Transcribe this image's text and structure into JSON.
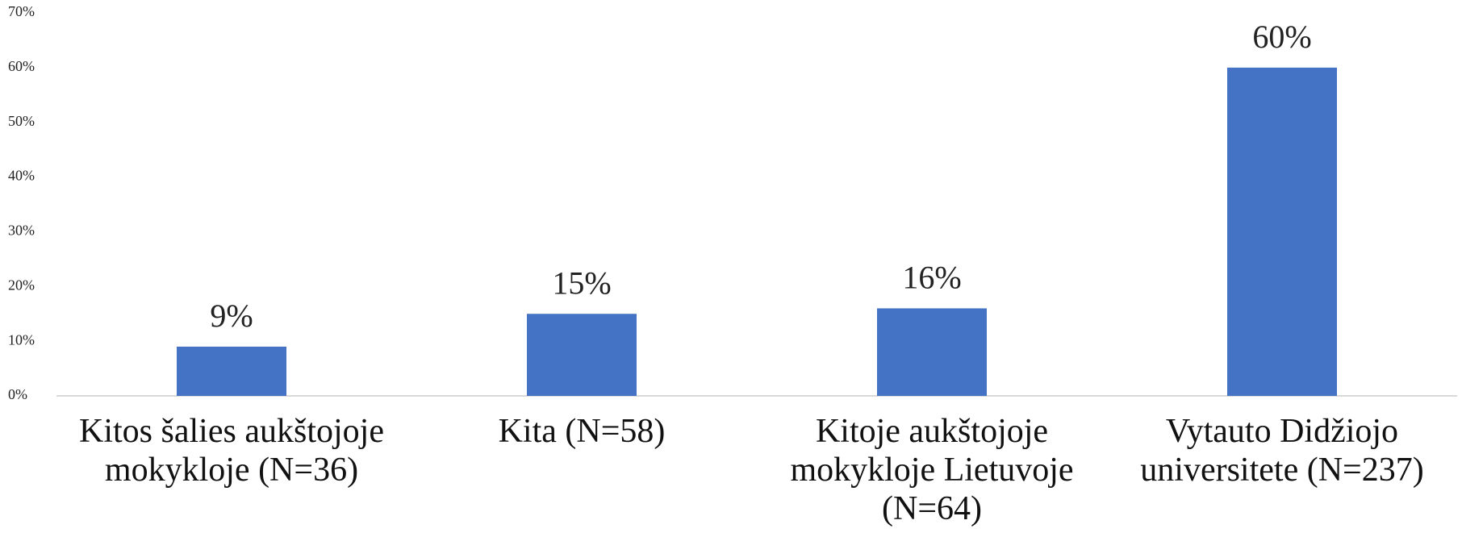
{
  "chart_data": {
    "type": "bar",
    "categories": [
      "Kitos šalies aukštojoje mokykloje (N=36)",
      "Kita (N=58)",
      "Kitoje aukštojoje mokykloje Lietuvoje (N=64)",
      "Vytauto Didžiojo universitete (N=237)"
    ],
    "values": [
      9,
      15,
      16,
      60
    ],
    "value_labels": [
      "9%",
      "15%",
      "16%",
      "60%"
    ],
    "color": "#4472c4",
    "ylim": [
      0,
      70
    ],
    "yticks": [
      {
        "value": 0,
        "label": "0%"
      },
      {
        "value": 10,
        "label": "10%"
      },
      {
        "value": 20,
        "label": "20%"
      },
      {
        "value": 30,
        "label": "30%"
      },
      {
        "value": 40,
        "label": "40%"
      },
      {
        "value": 50,
        "label": "50%"
      },
      {
        "value": 60,
        "label": "60%"
      },
      {
        "value": 70,
        "label": "70%"
      }
    ],
    "grid": false
  }
}
